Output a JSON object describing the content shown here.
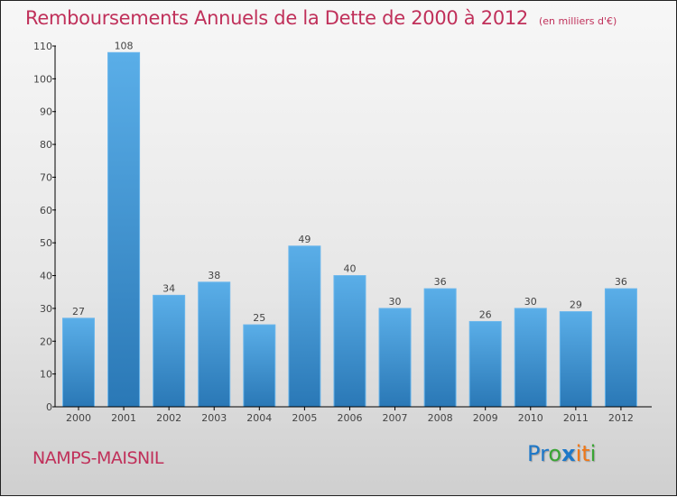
{
  "header": {
    "title": "Remboursements Annuels de la Dette de 2000 à 2012",
    "subtitle": "(en milliers d'€)"
  },
  "footer": {
    "commune": "NAMPS-MAISNIL",
    "logo": [
      {
        "char": "P",
        "color": "#1e78c8"
      },
      {
        "char": "r",
        "color": "#1e78c8"
      },
      {
        "char": "o",
        "color": "#3aa535"
      },
      {
        "char": "x",
        "color": "#1e78c8"
      },
      {
        "char": "i",
        "color": "#f07818"
      },
      {
        "char": "t",
        "color": "#f07818"
      },
      {
        "char": "i",
        "color": "#3aa535"
      }
    ]
  },
  "colors": {
    "title": "#c0305a",
    "bar_top": "#5aaee8",
    "bar_bottom": "#2a78b6",
    "axis": "#000000"
  },
  "chart_data": {
    "type": "bar",
    "title": "Remboursements Annuels de la Dette de 2000 à 2012",
    "subtitle": "(en milliers d'€)",
    "xlabel": "",
    "ylabel": "",
    "categories": [
      "2000",
      "2001",
      "2002",
      "2003",
      "2004",
      "2005",
      "2006",
      "2007",
      "2008",
      "2009",
      "2010",
      "2011",
      "2012"
    ],
    "values": [
      27,
      108,
      34,
      38,
      25,
      49,
      40,
      30,
      36,
      26,
      30,
      29,
      36
    ],
    "ylim": [
      0,
      110
    ],
    "yticks": [
      0,
      10,
      20,
      30,
      40,
      50,
      60,
      70,
      80,
      90,
      100,
      110
    ],
    "grid": false,
    "legend": "none",
    "data_labels": true
  }
}
